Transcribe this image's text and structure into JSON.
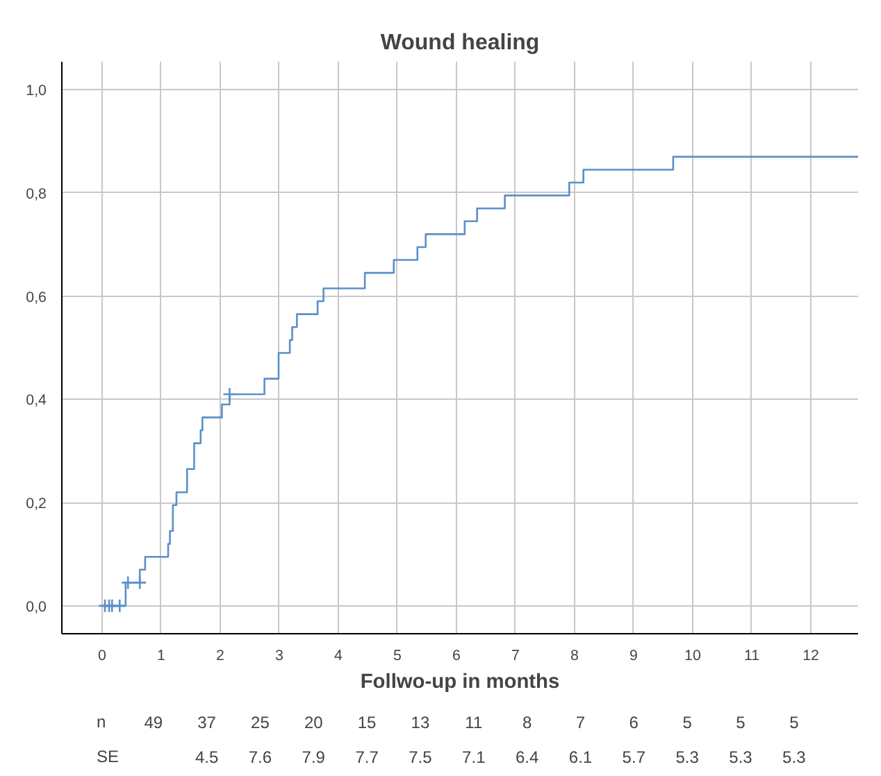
{
  "chart_data": {
    "type": "step",
    "title": "Wound healing",
    "xlabel": "Follwo-up in months",
    "xlim": [
      -0.68,
      12.8
    ],
    "ylim": [
      -0.054,
      1.054
    ],
    "xticks": [
      0,
      1,
      2,
      3,
      4,
      5,
      6,
      7,
      8,
      9,
      10,
      11,
      12
    ],
    "yticks": [
      {
        "value": 0,
        "label": "0,0"
      },
      {
        "value": 0.2,
        "label": "0,2"
      },
      {
        "value": 0.4,
        "label": "0,4"
      },
      {
        "value": 0.6,
        "label": "0,6"
      },
      {
        "value": 0.8,
        "label": "0,8"
      },
      {
        "value": 1.0,
        "label": "1,0"
      }
    ],
    "grid": true,
    "series": [
      {
        "color": "#5b8fc9",
        "x": [
          0.02,
          0.4,
          0.64,
          0.73,
          1.12,
          1.15,
          1.2,
          1.26,
          1.44,
          1.56,
          1.67,
          1.7,
          2.03,
          2.16,
          2.75,
          2.99,
          3.18,
          3.22,
          3.3,
          3.65,
          3.75,
          4.45,
          4.94,
          5.34,
          5.48,
          6.14,
          6.35,
          6.82,
          7.91,
          8.15,
          9.67,
          12.8
        ],
        "values": [
          0,
          0.045,
          0.07,
          0.095,
          0.12,
          0.145,
          0.195,
          0.22,
          0.265,
          0.315,
          0.34,
          0.365,
          0.39,
          0.41,
          0.44,
          0.49,
          0.515,
          0.54,
          0.565,
          0.59,
          0.615,
          0.645,
          0.67,
          0.695,
          0.72,
          0.745,
          0.77,
          0.795,
          0.82,
          0.845,
          0.87,
          0.87
        ]
      },
      {
        "type": "scatter",
        "marker": "cross",
        "color": "#5b8fc9",
        "x": [
          0.05,
          0.12,
          0.17,
          0.3,
          0.44,
          0.64,
          2.16
        ],
        "values": [
          0,
          0,
          0,
          0,
          0.045,
          0.045,
          0.41
        ]
      }
    ],
    "annotations": [
      "n",
      "49",
      "37",
      "25",
      "20",
      "15",
      "13",
      "11",
      "8",
      "7",
      "6",
      "5",
      "5",
      "5",
      "SE",
      "4.5",
      "7.6",
      "7.9",
      "7.7",
      "7.5",
      "7.1",
      "6.4",
      "6.1",
      "5.7",
      "5.3",
      "5.3",
      "5.3"
    ]
  }
}
